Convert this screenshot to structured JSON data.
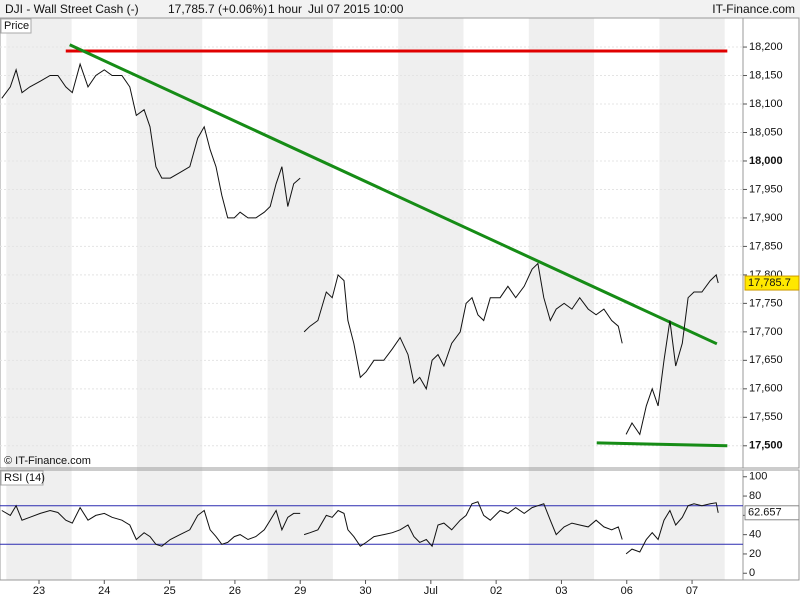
{
  "header": {
    "title": "DJI - Wall Street Cash (-)",
    "quote": "17,785.7 (+0.06%)",
    "interval": "1 hour",
    "datetime": "Jul 07 2015 10:00",
    "brand": "IT-Finance.com"
  },
  "chart_data": [
    {
      "type": "line",
      "panel_label": "Price",
      "watermark": "© IT-Finance.com",
      "grid": true,
      "xlim": [
        -0.597,
        10.78
      ],
      "ylim": [
        17461,
        18251
      ],
      "yticks": [
        {
          "value": 17500,
          "label": "17,500"
        },
        {
          "value": 17550,
          "label": "17,550"
        },
        {
          "value": 17600,
          "label": "17,600"
        },
        {
          "value": 17650,
          "label": "17,650"
        },
        {
          "value": 17700,
          "label": "17,700"
        },
        {
          "value": 17750,
          "label": "17,750"
        },
        {
          "value": 17800,
          "label": "17,800"
        },
        {
          "value": 17850,
          "label": "17,850"
        },
        {
          "value": 17900,
          "label": "17,900"
        },
        {
          "value": 17950,
          "label": "17,950"
        },
        {
          "value": 18000,
          "label": "18,000"
        },
        {
          "value": 18050,
          "label": "18,050"
        },
        {
          "value": 18100,
          "label": "18,100"
        },
        {
          "value": 18150,
          "label": "18,150"
        },
        {
          "value": 18200,
          "label": "18,200"
        }
      ],
      "x": [
        -0.57,
        -0.44,
        -0.35,
        -0.26,
        -0.14,
        0.02,
        0.17,
        0.29,
        0.41,
        0.51,
        0.63,
        0.75,
        0.87,
        1.0,
        1.12,
        1.27,
        1.39,
        1.49,
        1.61,
        1.7,
        1.79,
        1.88,
        2.01,
        2.16,
        2.31,
        2.43,
        2.53,
        2.62,
        2.71,
        2.8,
        2.89,
        2.99,
        3.08,
        3.2,
        3.32,
        3.45,
        3.54,
        3.63,
        3.72,
        3.81,
        3.9,
        4.0,
        4.03,
        4.06,
        4.15,
        4.27,
        4.4,
        4.49,
        4.58,
        4.67,
        4.73,
        4.82,
        4.92,
        5.01,
        5.13,
        5.28,
        5.41,
        5.53,
        5.65,
        5.74,
        5.83,
        5.93,
        6.02,
        6.11,
        6.2,
        6.32,
        6.45,
        6.54,
        6.63,
        6.72,
        6.81,
        6.91,
        7.06,
        7.18,
        7.3,
        7.43,
        7.55,
        7.64,
        7.73,
        7.83,
        7.92,
        8.04,
        8.16,
        8.28,
        8.41,
        8.53,
        8.65,
        8.77,
        8.87,
        8.93,
        8.96,
        8.99,
        9.08,
        9.2,
        9.3,
        9.39,
        9.48,
        9.57,
        9.66,
        9.75,
        9.85,
        9.94,
        10.03,
        10.15,
        10.28,
        10.37,
        10.4
      ],
      "series": [
        {
          "name": "DJI",
          "color": "#111111",
          "last_label": "17,785.7",
          "values": [
            18110,
            18130,
            18160,
            18120,
            18130,
            18140,
            18150,
            18150,
            18130,
            18120,
            18170,
            18130,
            18150,
            18160,
            18150,
            18150,
            18130,
            18080,
            18090,
            18060,
            17990,
            17970,
            17970,
            17980,
            17990,
            18040,
            18060,
            18020,
            17990,
            17940,
            17900,
            17900,
            17910,
            17900,
            17900,
            17910,
            17920,
            17960,
            17990,
            17920,
            17960,
            17970,
            null,
            17700,
            17710,
            17720,
            17770,
            17760,
            17800,
            17790,
            17720,
            17680,
            17620,
            17630,
            17650,
            17650,
            17670,
            17690,
            17660,
            17610,
            17620,
            17600,
            17650,
            17660,
            17640,
            17680,
            17700,
            17750,
            17760,
            17730,
            17720,
            17760,
            17760,
            17780,
            17760,
            17780,
            17810,
            17820,
            17760,
            17720,
            17740,
            17750,
            17740,
            17760,
            17740,
            17730,
            17740,
            17720,
            17710,
            17680,
            null,
            17520,
            17540,
            17520,
            17570,
            17600,
            17570,
            17650,
            17720,
            17640,
            17680,
            17760,
            17770,
            17770,
            17790,
            17800,
            17785.7
          ]
        }
      ],
      "trendlines": [
        {
          "color": "#e00000",
          "x": [
            0.41,
            10.54
          ],
          "y": [
            18193,
            18193
          ]
        },
        {
          "color": "#168c16",
          "x": [
            0.47,
            10.38
          ],
          "y": [
            18204,
            17679
          ]
        },
        {
          "color": "#168c16",
          "x": [
            8.54,
            10.54
          ],
          "y": [
            17505,
            17500
          ]
        }
      ]
    },
    {
      "type": "line",
      "panel_label": "RSI (14)",
      "xlim": [
        -0.597,
        10.78
      ],
      "ylim": [
        -7,
        107
      ],
      "yticks": [
        0,
        20,
        40,
        60,
        80,
        100
      ],
      "levels": [
        30,
        70
      ],
      "level_color": "#2b2bb0",
      "xticks": [
        {
          "value": 0,
          "label": "23"
        },
        {
          "value": 1,
          "label": "24"
        },
        {
          "value": 2,
          "label": "25"
        },
        {
          "value": 3,
          "label": "26"
        },
        {
          "value": 4,
          "label": "29"
        },
        {
          "value": 5,
          "label": "30"
        },
        {
          "value": 6,
          "label": "Jul"
        },
        {
          "value": 7,
          "label": "02"
        },
        {
          "value": 8,
          "label": "03"
        },
        {
          "value": 9,
          "label": "06"
        },
        {
          "value": 10,
          "label": "07"
        }
      ],
      "x": [
        -0.57,
        -0.44,
        -0.35,
        -0.26,
        -0.14,
        0.02,
        0.17,
        0.29,
        0.41,
        0.51,
        0.63,
        0.75,
        0.87,
        1.0,
        1.12,
        1.27,
        1.39,
        1.49,
        1.61,
        1.7,
        1.79,
        1.88,
        2.01,
        2.16,
        2.31,
        2.43,
        2.53,
        2.62,
        2.71,
        2.8,
        2.89,
        2.99,
        3.08,
        3.2,
        3.32,
        3.45,
        3.54,
        3.63,
        3.72,
        3.81,
        3.9,
        4.0,
        4.03,
        4.06,
        4.15,
        4.27,
        4.4,
        4.49,
        4.58,
        4.67,
        4.73,
        4.82,
        4.92,
        5.01,
        5.13,
        5.28,
        5.41,
        5.53,
        5.65,
        5.74,
        5.83,
        5.93,
        6.02,
        6.11,
        6.2,
        6.32,
        6.45,
        6.54,
        6.63,
        6.72,
        6.81,
        6.91,
        7.06,
        7.18,
        7.3,
        7.43,
        7.55,
        7.64,
        7.73,
        7.83,
        7.92,
        8.04,
        8.16,
        8.28,
        8.41,
        8.53,
        8.65,
        8.77,
        8.87,
        8.93,
        8.96,
        8.99,
        9.08,
        9.2,
        9.3,
        9.39,
        9.48,
        9.57,
        9.66,
        9.75,
        9.85,
        9.94,
        10.03,
        10.15,
        10.28,
        10.37,
        10.4
      ],
      "series": [
        {
          "name": "RSI",
          "color": "#111111",
          "values": [
            65,
            60,
            70,
            55,
            58,
            62,
            65,
            63,
            55,
            52,
            68,
            55,
            60,
            62,
            58,
            55,
            50,
            35,
            42,
            38,
            30,
            28,
            35,
            40,
            45,
            60,
            65,
            45,
            38,
            30,
            32,
            38,
            40,
            35,
            38,
            45,
            55,
            65,
            45,
            58,
            62,
            62,
            null,
            40,
            42,
            45,
            60,
            58,
            65,
            62,
            45,
            38,
            28,
            32,
            38,
            40,
            42,
            45,
            50,
            38,
            32,
            35,
            28,
            50,
            52,
            45,
            55,
            60,
            72,
            74,
            60,
            55,
            65,
            62,
            68,
            62,
            68,
            70,
            72,
            55,
            40,
            48,
            52,
            50,
            48,
            55,
            48,
            45,
            48,
            35,
            null,
            20,
            25,
            22,
            35,
            42,
            35,
            55,
            65,
            50,
            58,
            70,
            72,
            70,
            72,
            73,
            62.657
          ]
        }
      ]
    }
  ]
}
